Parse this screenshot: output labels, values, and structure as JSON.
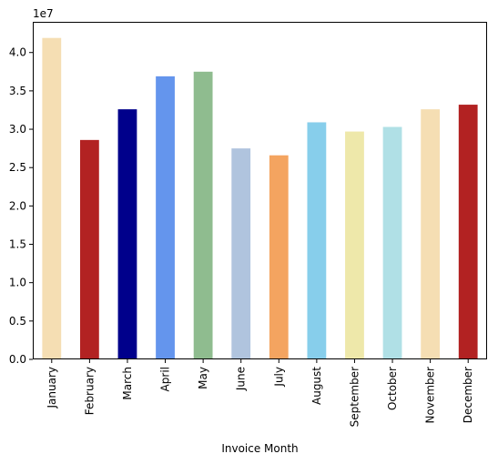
{
  "chart_data": {
    "type": "bar",
    "title": "",
    "xlabel": "Invoice Month",
    "ylabel": "",
    "y_offset_label": "1e7",
    "y_multiplier": 10000000,
    "ylim": [
      0,
      4.4
    ],
    "yticks": [
      0.0,
      0.5,
      1.0,
      1.5,
      2.0,
      2.5,
      3.0,
      3.5,
      4.0
    ],
    "ytick_labels": [
      "0.0",
      "0.5",
      "1.0",
      "1.5",
      "2.0",
      "2.5",
      "3.0",
      "3.5",
      "4.0"
    ],
    "grid": false,
    "legend": "none",
    "categories": [
      "January",
      "February",
      "March",
      "April",
      "May",
      "June",
      "July",
      "August",
      "September",
      "October",
      "November",
      "December"
    ],
    "values": [
      41900000,
      28600000,
      32600000,
      36900000,
      37500000,
      27500000,
      26600000,
      30900000,
      29700000,
      30300000,
      32600000,
      33200000
    ],
    "colors": [
      "#F5DEB3",
      "#B22222",
      "#00008B",
      "#6495ED",
      "#8FBC8F",
      "#B0C4DE",
      "#F4A460",
      "#87CEEB",
      "#EEE8AA",
      "#B0E0E6",
      "#F5DEB3",
      "#B22222"
    ]
  }
}
